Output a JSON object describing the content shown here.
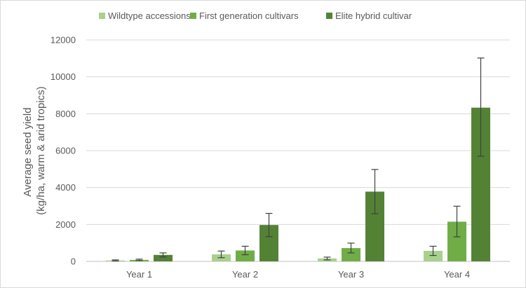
{
  "chart_data": {
    "type": "bar",
    "title": "",
    "xlabel": "",
    "ylabel_lines": [
      "Average seed yield",
      "(kg/ha, warm & arid tropics)"
    ],
    "ylim": [
      0,
      12000
    ],
    "yticks": [
      0,
      2000,
      4000,
      6000,
      8000,
      10000,
      12000
    ],
    "grid": true,
    "legend_position": "top",
    "categories": [
      "Year 1",
      "Year 2",
      "Year 3",
      "Year 4"
    ],
    "series": [
      {
        "name": "Wildtype accessions",
        "color": "#a9d18e",
        "values": [
          50,
          380,
          160,
          570
        ],
        "error_low": [
          20,
          200,
          80,
          320
        ],
        "error_high": [
          80,
          560,
          230,
          820
        ]
      },
      {
        "name": "First generation cultivars",
        "color": "#70ad47",
        "values": [
          80,
          590,
          720,
          2150
        ],
        "error_low": [
          40,
          360,
          460,
          1330
        ],
        "error_high": [
          120,
          820,
          990,
          2990
        ]
      },
      {
        "name": "Elite hybrid cultivar",
        "color": "#548235",
        "values": [
          350,
          1970,
          3780,
          8330
        ],
        "error_low": [
          240,
          1340,
          2580,
          5700
        ],
        "error_high": [
          460,
          2600,
          4980,
          11020
        ]
      }
    ]
  }
}
